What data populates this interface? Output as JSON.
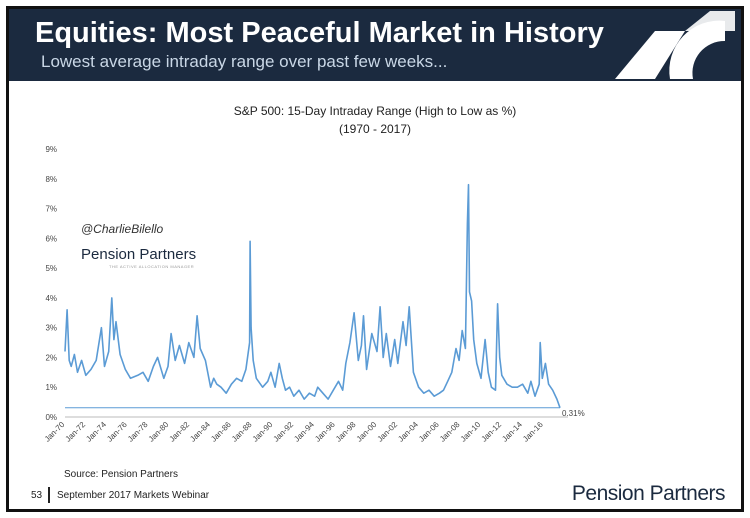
{
  "header": {
    "title": "Equities: Most Peaceful Market in History",
    "subtitle": "Lowest average intraday range over past few weeks...",
    "colors": {
      "background": "#1b2a3f",
      "title": "#ffffff",
      "subtitle": "#c9d7e6"
    }
  },
  "watermark": {
    "handle": "@CharlieBilello",
    "brand": "Pension Partners",
    "tagline": "THE ACTIVE ALLOCATION MANAGER"
  },
  "source": "Source: Pension Partners",
  "footer": {
    "page": "53",
    "text": "September 2017 Markets Webinar",
    "logo_text": "Pension Partners"
  },
  "chart_data": {
    "type": "line",
    "title": "S&P 500: 15-Day Intraday Range (High to Low as %)",
    "subtitle": "(1970 - 2017)",
    "xlabel": "",
    "ylabel": "",
    "x_start": 1970.0,
    "x_end": 2017.6,
    "ylim": [
      0,
      9
    ],
    "y_ticks": [
      "0%",
      "1%",
      "2%",
      "3%",
      "4%",
      "5%",
      "6%",
      "7%",
      "8%",
      "9%"
    ],
    "x_tick_labels": [
      "Jan-70",
      "Jan-72",
      "Jan-74",
      "Jan-76",
      "Jan-78",
      "Jan-80",
      "Jan-82",
      "Jan-84",
      "Jan-86",
      "Jan-88",
      "Jan-90",
      "Jan-92",
      "Jan-94",
      "Jan-96",
      "Jan-98",
      "Jan-00",
      "Jan-02",
      "Jan-04",
      "Jan-06",
      "Jan-08",
      "Jan-10",
      "Jan-12",
      "Jan-14",
      "Jan-16"
    ],
    "grid": false,
    "series": [
      {
        "color": "#5b9bd5",
        "x": [
          1970.0,
          1970.2,
          1970.4,
          1970.6,
          1970.9,
          1971.2,
          1971.6,
          1972.0,
          1972.5,
          1973.0,
          1973.5,
          1973.8,
          1974.2,
          1974.5,
          1974.7,
          1974.9,
          1975.3,
          1975.8,
          1976.3,
          1977.0,
          1977.5,
          1978.0,
          1978.5,
          1978.9,
          1979.5,
          1979.9,
          1980.2,
          1980.6,
          1981.0,
          1981.5,
          1981.9,
          1982.4,
          1982.7,
          1983.0,
          1983.5,
          1984.0,
          1984.3,
          1984.6,
          1985.0,
          1985.5,
          1986.0,
          1986.5,
          1987.0,
          1987.4,
          1987.75,
          1987.8,
          1987.9,
          1988.1,
          1988.4,
          1989.0,
          1989.5,
          1989.8,
          1990.2,
          1990.6,
          1990.9,
          1991.2,
          1991.6,
          1992.0,
          1992.5,
          1993.0,
          1993.5,
          1994.0,
          1994.3,
          1994.8,
          1995.3,
          1995.8,
          1996.3,
          1996.7,
          1997.0,
          1997.4,
          1997.8,
          1998.2,
          1998.5,
          1998.7,
          1999.0,
          1999.5,
          2000.0,
          2000.3,
          2000.6,
          2000.9,
          2001.3,
          2001.7,
          2002.0,
          2002.5,
          2002.8,
          2003.1,
          2003.5,
          2004.0,
          2004.5,
          2005.0,
          2005.5,
          2006.0,
          2006.4,
          2006.8,
          2007.2,
          2007.6,
          2007.9,
          2008.2,
          2008.5,
          2008.7,
          2008.8,
          2008.9,
          2009.1,
          2009.3,
          2009.6,
          2010.0,
          2010.4,
          2010.7,
          2011.0,
          2011.4,
          2011.6,
          2011.8,
          2012.0,
          2012.5,
          2013.0,
          2013.5,
          2014.0,
          2014.5,
          2014.8,
          2015.2,
          2015.6,
          2015.7,
          2015.9,
          2016.2,
          2016.5,
          2016.9,
          2017.3,
          2017.6
        ],
        "values": [
          2.2,
          3.6,
          1.9,
          1.7,
          2.1,
          1.5,
          1.9,
          1.4,
          1.6,
          1.9,
          3.0,
          1.7,
          2.2,
          4.0,
          2.6,
          3.2,
          2.1,
          1.6,
          1.3,
          1.4,
          1.5,
          1.2,
          1.7,
          2.0,
          1.3,
          1.7,
          2.8,
          1.9,
          2.4,
          1.8,
          2.5,
          2.0,
          3.4,
          2.3,
          1.9,
          1.0,
          1.3,
          1.1,
          1.0,
          0.8,
          1.1,
          1.3,
          1.2,
          1.6,
          2.5,
          5.9,
          3.0,
          1.9,
          1.3,
          1.0,
          1.2,
          1.5,
          1.0,
          1.8,
          1.3,
          0.9,
          1.0,
          0.7,
          0.9,
          0.6,
          0.8,
          0.7,
          1.0,
          0.8,
          0.6,
          0.9,
          1.2,
          0.9,
          1.8,
          2.5,
          3.5,
          1.9,
          2.4,
          3.4,
          1.6,
          2.8,
          2.2,
          3.7,
          2.0,
          2.8,
          1.7,
          2.6,
          1.8,
          3.2,
          2.4,
          3.7,
          1.5,
          1.0,
          0.8,
          0.9,
          0.7,
          0.8,
          0.9,
          1.2,
          1.5,
          2.3,
          1.9,
          2.9,
          2.3,
          6.5,
          7.8,
          4.2,
          3.9,
          2.6,
          1.8,
          1.3,
          2.6,
          1.5,
          1.0,
          0.9,
          3.8,
          2.0,
          1.4,
          1.1,
          1.0,
          1.0,
          1.1,
          0.8,
          1.2,
          0.7,
          1.1,
          2.5,
          1.3,
          1.8,
          1.1,
          0.9,
          0.6,
          0.31
        ]
      }
    ],
    "annotations": [
      {
        "label": "0.31%",
        "y": 0.31
      }
    ]
  }
}
